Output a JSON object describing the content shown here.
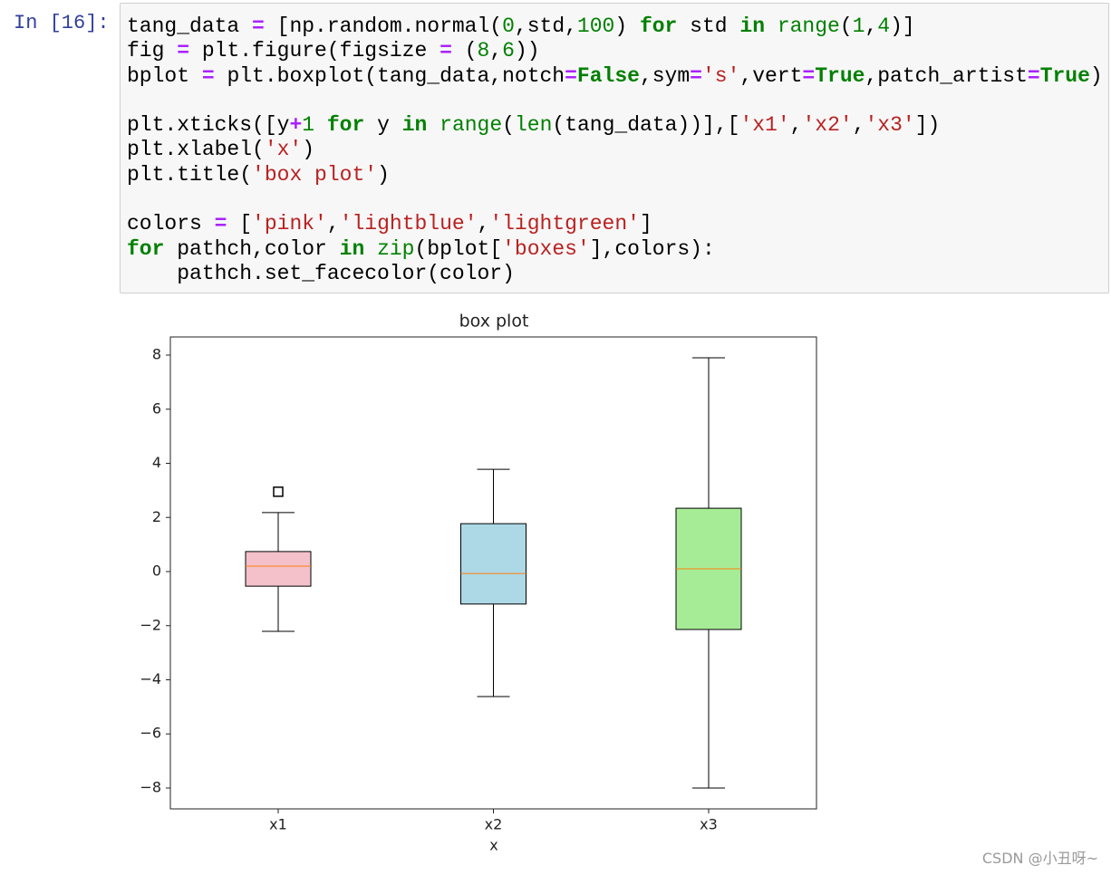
{
  "cell": {
    "prompt": "In [16]:",
    "lines": [
      [
        {
          "text": "tang_data "
        },
        {
          "text": "=",
          "color": "#aa22ff",
          "bold": true
        },
        {
          "text": " [np.random.normal("
        },
        {
          "text": "0",
          "color": "#008000"
        },
        {
          "text": ",std,"
        },
        {
          "text": "100",
          "color": "#008000"
        },
        {
          "text": ") "
        },
        {
          "text": "for",
          "color": "#008000",
          "bold": true
        },
        {
          "text": " std "
        },
        {
          "text": "in",
          "color": "#008000",
          "bold": true
        },
        {
          "text": " "
        },
        {
          "text": "range",
          "color": "#008000"
        },
        {
          "text": "("
        },
        {
          "text": "1",
          "color": "#008000"
        },
        {
          "text": ","
        },
        {
          "text": "4",
          "color": "#008000"
        },
        {
          "text": ")]"
        }
      ],
      [
        {
          "text": "fig "
        },
        {
          "text": "=",
          "color": "#aa22ff",
          "bold": true
        },
        {
          "text": " plt.figure(figsize "
        },
        {
          "text": "=",
          "color": "#aa22ff",
          "bold": true
        },
        {
          "text": " ("
        },
        {
          "text": "8",
          "color": "#008000"
        },
        {
          "text": ","
        },
        {
          "text": "6",
          "color": "#008000"
        },
        {
          "text": "))"
        }
      ],
      [
        {
          "text": "bplot "
        },
        {
          "text": "=",
          "color": "#aa22ff",
          "bold": true
        },
        {
          "text": " plt.boxplot(tang_data,notch"
        },
        {
          "text": "=",
          "color": "#aa22ff",
          "bold": true
        },
        {
          "text": "False",
          "color": "#008000",
          "bold": true
        },
        {
          "text": ",sym"
        },
        {
          "text": "=",
          "color": "#aa22ff",
          "bold": true
        },
        {
          "text": "'s'",
          "color": "#ba2121"
        },
        {
          "text": ",vert"
        },
        {
          "text": "=",
          "color": "#aa22ff",
          "bold": true
        },
        {
          "text": "True",
          "color": "#008000",
          "bold": true
        },
        {
          "text": ",patch_artist"
        },
        {
          "text": "=",
          "color": "#aa22ff",
          "bold": true
        },
        {
          "text": "True",
          "color": "#008000",
          "bold": true
        },
        {
          "text": ")"
        }
      ],
      [],
      [
        {
          "text": "plt.xticks([y"
        },
        {
          "text": "+",
          "color": "#aa22ff",
          "bold": true
        },
        {
          "text": "1",
          "color": "#008000"
        },
        {
          "text": " "
        },
        {
          "text": "for",
          "color": "#008000",
          "bold": true
        },
        {
          "text": " y "
        },
        {
          "text": "in",
          "color": "#008000",
          "bold": true
        },
        {
          "text": " "
        },
        {
          "text": "range",
          "color": "#008000"
        },
        {
          "text": "("
        },
        {
          "text": "len",
          "color": "#008000"
        },
        {
          "text": "(tang_data))],["
        },
        {
          "text": "'x1'",
          "color": "#ba2121"
        },
        {
          "text": ","
        },
        {
          "text": "'x2'",
          "color": "#ba2121"
        },
        {
          "text": ","
        },
        {
          "text": "'x3'",
          "color": "#ba2121"
        },
        {
          "text": "])"
        }
      ],
      [
        {
          "text": "plt.xlabel("
        },
        {
          "text": "'x'",
          "color": "#ba2121"
        },
        {
          "text": ")"
        }
      ],
      [
        {
          "text": "plt.title("
        },
        {
          "text": "'box plot'",
          "color": "#ba2121"
        },
        {
          "text": ")"
        }
      ],
      [],
      [
        {
          "text": "colors "
        },
        {
          "text": "=",
          "color": "#aa22ff",
          "bold": true
        },
        {
          "text": " ["
        },
        {
          "text": "'pink'",
          "color": "#ba2121"
        },
        {
          "text": ","
        },
        {
          "text": "'lightblue'",
          "color": "#ba2121"
        },
        {
          "text": ","
        },
        {
          "text": "'lightgreen'",
          "color": "#ba2121"
        },
        {
          "text": "]"
        }
      ],
      [
        {
          "text": "for",
          "color": "#008000",
          "bold": true
        },
        {
          "text": " pathch,color "
        },
        {
          "text": "in",
          "color": "#008000",
          "bold": true
        },
        {
          "text": " "
        },
        {
          "text": "zip",
          "color": "#008000"
        },
        {
          "text": "(bplot["
        },
        {
          "text": "'boxes'",
          "color": "#ba2121"
        },
        {
          "text": "],colors):"
        }
      ],
      [
        {
          "text": "    pathch.set_facecolor(color)"
        }
      ]
    ]
  },
  "chart_data": {
    "type": "box",
    "title": "box plot",
    "x_label": "x",
    "categories": [
      "x1",
      "x2",
      "x3"
    ],
    "boxes": [
      {
        "color": "#f4c1cb",
        "whislo": -2.21,
        "q1": -0.54,
        "median": 0.2,
        "q3": 0.74,
        "whishi": 2.18,
        "fliers": [
          2.95
        ]
      },
      {
        "color": "#add8e6",
        "whislo": -4.62,
        "q1": -1.2,
        "median": -0.07,
        "q3": 1.77,
        "whishi": 3.78,
        "fliers": []
      },
      {
        "color": "#a6ec96",
        "whislo": -8.0,
        "q1": -2.14,
        "median": 0.1,
        "q3": 2.34,
        "whishi": 7.9,
        "fliers": []
      }
    ],
    "median_color": "#ff7f0e",
    "ylim": [
      -8.77,
      8.67
    ],
    "yticks": [
      {
        "value": -8,
        "label": "−8"
      },
      {
        "value": -6,
        "label": "−6"
      },
      {
        "value": -4,
        "label": "−4"
      },
      {
        "value": -2,
        "label": "−2"
      },
      0,
      2,
      4,
      6,
      8
    ]
  },
  "watermark": "CSDN @小丑呀~"
}
